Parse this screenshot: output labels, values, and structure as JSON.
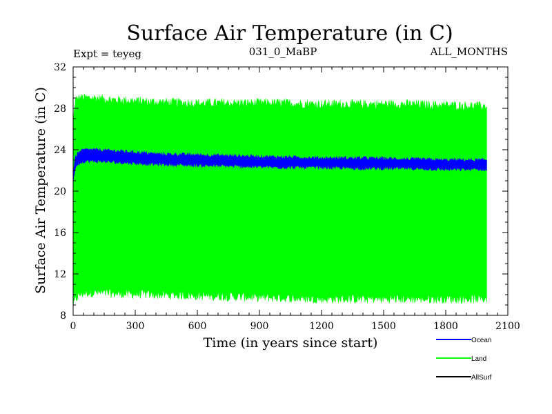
{
  "chart_data": {
    "type": "area",
    "title": "Surface Air Temperature (in C)",
    "expt_label": "Expt = teyeg",
    "center_label": "031_0_MaBP",
    "right_label": "ALL_MONTHS",
    "xlabel": "Time (in years since start)",
    "ylabel": "Surface Air Temperature (in C)",
    "xlim": [
      0,
      2100
    ],
    "ylim": [
      8,
      32
    ],
    "x_ticks": [
      0,
      300,
      600,
      900,
      1200,
      1500,
      1800,
      2100
    ],
    "y_ticks": [
      8,
      12,
      16,
      20,
      24,
      28,
      32
    ],
    "series": [
      {
        "name": "Land",
        "color": "#00ff00",
        "x": [
          0,
          10,
          30,
          60,
          100,
          200,
          400,
          600,
          800,
          1000,
          1200,
          1400,
          1600,
          1800,
          2000
        ],
        "upper": [
          26.5,
          28.8,
          29.0,
          29.0,
          29.0,
          28.8,
          28.6,
          28.5,
          28.5,
          28.5,
          28.4,
          28.4,
          28.4,
          28.3,
          28.2
        ],
        "lower": [
          9.0,
          9.5,
          10.0,
          10.2,
          10.2,
          10.1,
          10.0,
          9.9,
          9.8,
          9.7,
          9.6,
          9.6,
          9.6,
          9.6,
          9.6
        ]
      },
      {
        "name": "Ocean",
        "color": "#0000ff",
        "x": [
          0,
          5,
          10,
          20,
          40,
          60,
          100,
          200,
          400,
          600,
          800,
          1000,
          1200,
          1400,
          1600,
          1800,
          2000
        ],
        "upper": [
          21.5,
          22.6,
          23.2,
          23.6,
          23.9,
          24.0,
          24.0,
          23.9,
          23.6,
          23.5,
          23.4,
          23.3,
          23.2,
          23.2,
          23.1,
          23.0,
          23.0
        ],
        "lower": [
          20.8,
          21.6,
          22.2,
          22.6,
          22.8,
          22.9,
          22.9,
          22.8,
          22.6,
          22.5,
          22.4,
          22.3,
          22.3,
          22.2,
          22.2,
          22.1,
          22.1
        ]
      },
      {
        "name": "AllSurf",
        "color": "#000000",
        "x": [],
        "values": []
      }
    ],
    "legend": {
      "placement": "bottom-right",
      "entries": [
        {
          "label": "Ocean",
          "color": "#0000ff"
        },
        {
          "label": "Land",
          "color": "#00ff00"
        },
        {
          "label": "AllSurf",
          "color": "#000000"
        }
      ]
    }
  }
}
